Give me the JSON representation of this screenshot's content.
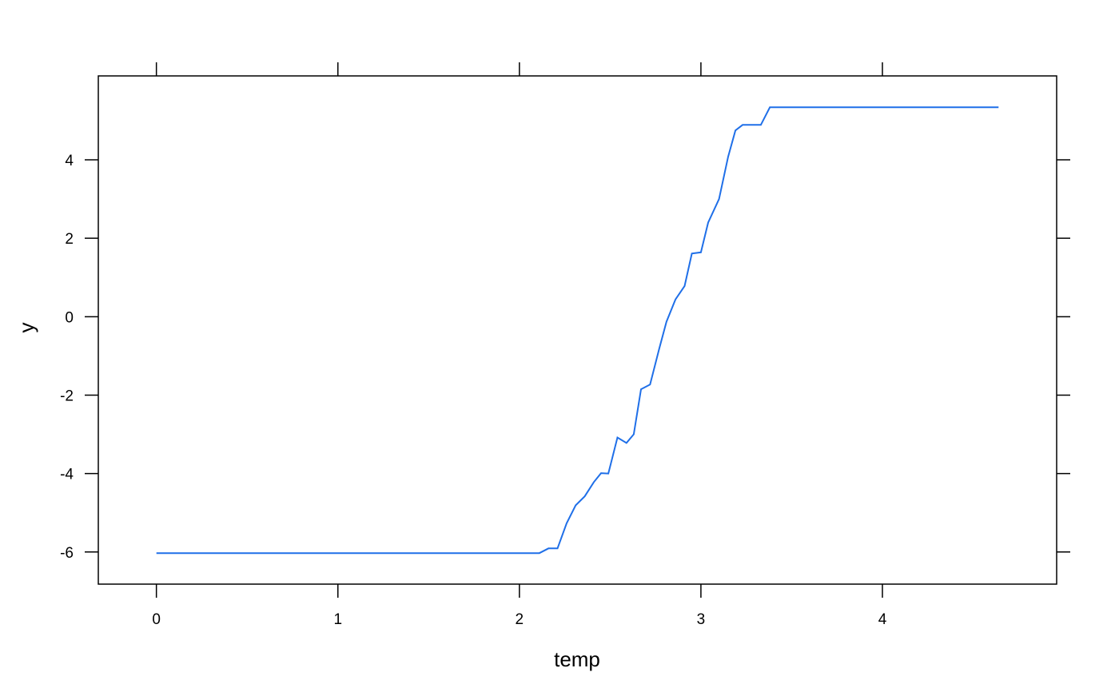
{
  "chart_data": {
    "type": "line",
    "title": "",
    "xlabel": "temp",
    "ylabel": "y",
    "xlim": [
      -0.32,
      4.96
    ],
    "ylim": [
      -6.82,
      6.14
    ],
    "xticks": [
      0,
      1,
      2,
      3,
      4
    ],
    "yticks": [
      -6,
      -4,
      -2,
      0,
      2,
      4
    ],
    "grid": false,
    "line_color": "#1f6fe8",
    "series": [
      {
        "x": [
          0.0,
          0.5,
          1.0,
          1.5,
          2.0,
          2.11,
          2.16,
          2.21,
          2.26,
          2.31,
          2.36,
          2.41,
          2.45,
          2.49,
          2.54,
          2.59,
          2.63,
          2.67,
          2.72,
          2.77,
          2.81,
          2.86,
          2.91,
          2.95,
          3.0,
          3.04,
          3.1,
          3.15,
          3.19,
          3.23,
          3.28,
          3.33,
          3.38,
          3.6,
          4.0,
          4.4,
          4.64
        ],
        "y": [
          -6.03,
          -6.03,
          -6.03,
          -6.03,
          -6.03,
          -6.03,
          -5.91,
          -5.91,
          -5.27,
          -4.81,
          -4.58,
          -4.22,
          -3.99,
          -4.0,
          -3.08,
          -3.22,
          -3.0,
          -1.85,
          -1.73,
          -0.82,
          -0.13,
          0.44,
          0.78,
          1.61,
          1.64,
          2.4,
          3.0,
          4.08,
          4.75,
          4.89,
          4.89,
          4.89,
          5.34,
          5.34,
          5.34,
          5.34,
          5.34
        ]
      }
    ]
  }
}
